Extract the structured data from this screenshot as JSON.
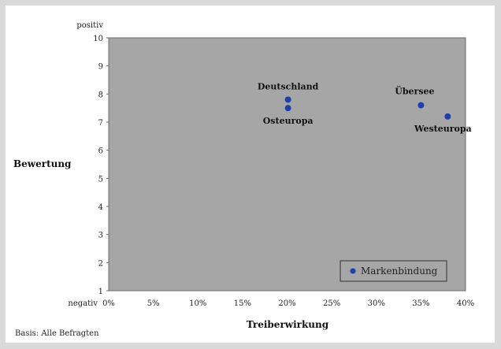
{
  "chart_data": {
    "type": "scatter",
    "xlabel": "Treiberwirkung",
    "ylabel": "Bewertung",
    "xlim": [
      0,
      40
    ],
    "ylim": [
      1,
      10
    ],
    "x_ticks": [
      "0%",
      "5%",
      "10%",
      "15%",
      "20%",
      "25%",
      "30%",
      "35%",
      "40%"
    ],
    "y_ticks": [
      "1",
      "2",
      "3",
      "4",
      "5",
      "6",
      "7",
      "8",
      "9",
      "10"
    ],
    "y_top_label": "positiv",
    "y_bottom_label": "negativ",
    "plot_background": "#a6a6a6",
    "marker_color": "#1f3ea8",
    "grid": false,
    "legend": {
      "position": "bottom-right",
      "entries": [
        "Markenbindung"
      ]
    },
    "series": [
      {
        "name": "Markenbindung",
        "points": [
          {
            "label": "Deutschland",
            "x": 20.1,
            "y": 7.8
          },
          {
            "label": "Osteuropa",
            "x": 20.1,
            "y": 7.5
          },
          {
            "label": "Übersee",
            "x": 35.0,
            "y": 7.6
          },
          {
            "label": "Westeuropa",
            "x": 38.0,
            "y": 7.2
          }
        ]
      }
    ]
  },
  "footnote": "Basis: Alle Befragten"
}
